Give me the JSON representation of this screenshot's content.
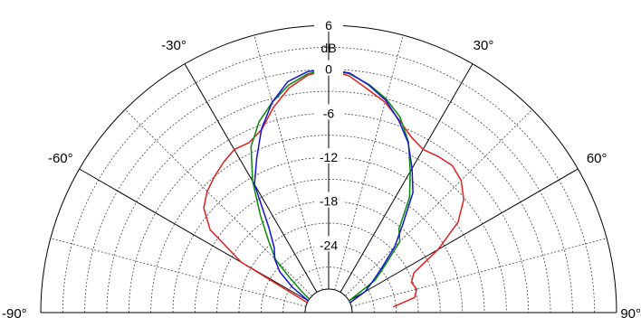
{
  "chart_data": {
    "type": "polar",
    "unit_label": "dB",
    "r_range_db": [
      -30,
      6
    ],
    "ring_labels": [
      "6",
      "0",
      "-6",
      "-12",
      "-18",
      "-24"
    ],
    "ring_values_db": [
      6,
      0,
      -6,
      -12,
      -18,
      -24
    ],
    "minor_ring_step_db": 3,
    "angle_range_deg": [
      -90,
      90
    ],
    "angle_labels": [
      {
        "deg": -90,
        "text": "-90°"
      },
      {
        "deg": -60,
        "text": "-60°"
      },
      {
        "deg": -30,
        "text": "-30°"
      },
      {
        "deg": 30,
        "text": "30°"
      },
      {
        "deg": 60,
        "text": "60°"
      },
      {
        "deg": 90,
        "text": "90°"
      }
    ],
    "radial_lines_deg": [
      -90,
      -75,
      -60,
      -45,
      -30,
      -15,
      0,
      15,
      30,
      45,
      60,
      75,
      90
    ],
    "series": [
      {
        "color": "#e02020",
        "points": [
          {
            "deg": -65,
            "db": -30
          },
          {
            "deg": -60,
            "db": -19.5
          },
          {
            "deg": -55,
            "db": -13.5
          },
          {
            "deg": -50,
            "db": -11
          },
          {
            "deg": -45,
            "db": -9.8
          },
          {
            "deg": -40,
            "db": -9
          },
          {
            "deg": -35,
            "db": -8.2
          },
          {
            "deg": -30,
            "db": -7.5
          },
          {
            "deg": -25,
            "db": -7.6
          },
          {
            "deg": -20,
            "db": -6.6
          },
          {
            "deg": -15,
            "db": -4.2
          },
          {
            "deg": -10,
            "db": -2.1
          },
          {
            "deg": -5,
            "db": -0.7
          },
          {
            "deg": 0,
            "db": 0
          },
          {
            "deg": 5,
            "db": -0.8
          },
          {
            "deg": 10,
            "db": -2.3
          },
          {
            "deg": 15,
            "db": -3.5
          },
          {
            "deg": 20,
            "db": -5.2
          },
          {
            "deg": 25,
            "db": -6.7
          },
          {
            "deg": 30,
            "db": -7.5
          },
          {
            "deg": 35,
            "db": -7.2
          },
          {
            "deg": 40,
            "db": -7
          },
          {
            "deg": 45,
            "db": -7.7
          },
          {
            "deg": 50,
            "db": -9.2
          },
          {
            "deg": 55,
            "db": -11.7
          },
          {
            "deg": 60,
            "db": -16
          },
          {
            "deg": 65,
            "db": -20.4
          },
          {
            "deg": 70,
            "db": -21.2
          },
          {
            "deg": 75,
            "db": -20.8
          },
          {
            "deg": 80,
            "db": -21.3
          },
          {
            "deg": 85,
            "db": -24.4
          }
        ]
      },
      {
        "color": "#0a8a0a",
        "points": [
          {
            "deg": -55,
            "db": -30
          },
          {
            "deg": -52,
            "db": -28.6
          },
          {
            "deg": -48,
            "db": -26
          },
          {
            "deg": -45,
            "db": -23
          },
          {
            "deg": -40,
            "db": -20.5
          },
          {
            "deg": -35,
            "db": -17
          },
          {
            "deg": -30,
            "db": -12.5
          },
          {
            "deg": -25,
            "db": -8.2
          },
          {
            "deg": -20,
            "db": -5.5
          },
          {
            "deg": -15,
            "db": -3.5
          },
          {
            "deg": -10,
            "db": -1.7
          },
          {
            "deg": -5,
            "db": -0.5
          },
          {
            "deg": 0,
            "db": 0
          },
          {
            "deg": 5,
            "db": -0.5
          },
          {
            "deg": 10,
            "db": -1.6
          },
          {
            "deg": 15,
            "db": -3
          },
          {
            "deg": 20,
            "db": -4.8
          },
          {
            "deg": 25,
            "db": -7.5
          },
          {
            "deg": 30,
            "db": -11
          },
          {
            "deg": 35,
            "db": -14
          },
          {
            "deg": 40,
            "db": -18.3
          },
          {
            "deg": 45,
            "db": -19.5
          },
          {
            "deg": 50,
            "db": -23.2
          },
          {
            "deg": 55,
            "db": -25.5
          },
          {
            "deg": 60,
            "db": -30
          }
        ]
      },
      {
        "color": "#1414d2",
        "points": [
          {
            "deg": -60,
            "db": -30
          },
          {
            "deg": -55,
            "db": -27.2
          },
          {
            "deg": -50,
            "db": -24.5
          },
          {
            "deg": -45,
            "db": -22.8
          },
          {
            "deg": -40,
            "db": -21.7
          },
          {
            "deg": -35,
            "db": -19
          },
          {
            "deg": -30,
            "db": -13
          },
          {
            "deg": -25,
            "db": -10
          },
          {
            "deg": -20,
            "db": -6.5
          },
          {
            "deg": -15,
            "db": -3.5
          },
          {
            "deg": -10,
            "db": -1.2
          },
          {
            "deg": -5,
            "db": -0.2
          },
          {
            "deg": 0,
            "db": 0
          },
          {
            "deg": 5,
            "db": -0.4
          },
          {
            "deg": 10,
            "db": -1.7
          },
          {
            "deg": 15,
            "db": -3.2
          },
          {
            "deg": 20,
            "db": -5.3
          },
          {
            "deg": 25,
            "db": -7.6
          },
          {
            "deg": 30,
            "db": -10.5
          },
          {
            "deg": 35,
            "db": -13.2
          },
          {
            "deg": 40,
            "db": -17.5
          },
          {
            "deg": 45,
            "db": -20.5
          },
          {
            "deg": 50,
            "db": -23.8
          },
          {
            "deg": 55,
            "db": -26
          },
          {
            "deg": 60,
            "db": -27.5
          },
          {
            "deg": 65,
            "db": -30
          }
        ]
      }
    ]
  }
}
